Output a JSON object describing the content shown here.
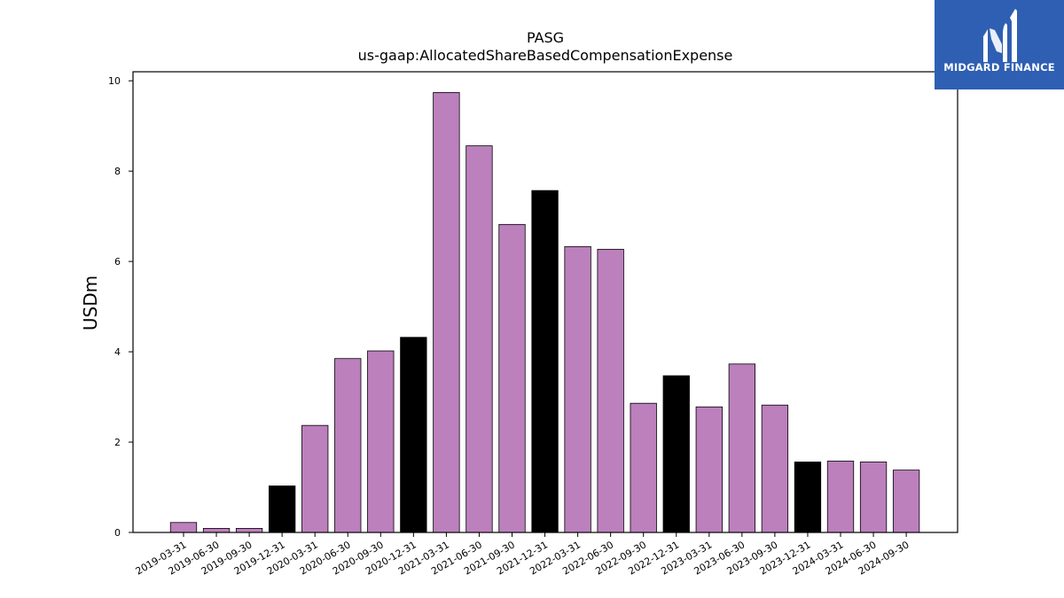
{
  "brand": {
    "name": "MIDGARD FINANCE",
    "bg_color": "#2f5fb3"
  },
  "chart_data": {
    "type": "bar",
    "title": "PASG",
    "subtitle": "us-gaap:AllocatedShareBasedCompensationExpense",
    "xlabel": "",
    "ylabel": "USDm",
    "ylim": [
      0,
      10.2
    ],
    "yticks": [
      0,
      2,
      4,
      6,
      8,
      10
    ],
    "grid": false,
    "legend": "none",
    "colors": {
      "quarter": "#bc80bd",
      "year_end": "#000000"
    },
    "categories": [
      "2019-03-31",
      "2019-06-30",
      "2019-09-30",
      "2019-12-31",
      "2020-03-31",
      "2020-06-30",
      "2020-09-30",
      "2020-12-31",
      "2021-03-31",
      "2021-06-30",
      "2021-09-30",
      "2021-12-31",
      "2022-03-31",
      "2022-06-30",
      "2022-09-30",
      "2022-12-31",
      "2023-03-31",
      "2023-06-30",
      "2023-09-30",
      "2023-12-31",
      "2024-03-31",
      "2024-06-30",
      "2024-09-30"
    ],
    "values": [
      0.22,
      0.09,
      0.09,
      1.03,
      2.37,
      3.85,
      4.02,
      4.32,
      9.74,
      8.56,
      6.82,
      7.57,
      6.33,
      6.27,
      2.86,
      3.47,
      2.78,
      3.73,
      2.82,
      1.56,
      1.58,
      1.56,
      1.38
    ]
  }
}
